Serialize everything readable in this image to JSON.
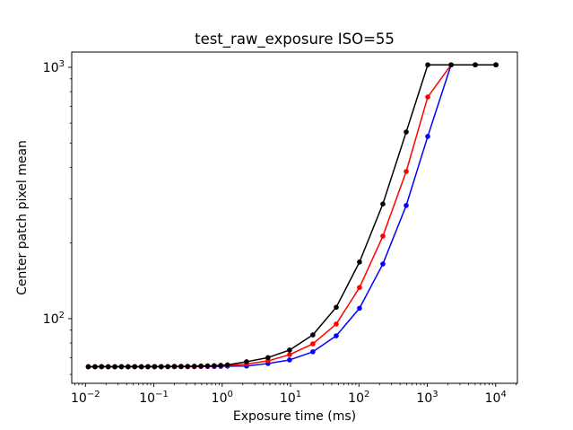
{
  "figure": {
    "background": "#ffffff",
    "spine_color": "#000000"
  },
  "chart_data": {
    "type": "line",
    "title": "test_raw_exposure ISO=55",
    "xlabel": "Exposure time (ms)",
    "ylabel": "Center patch pixel mean",
    "x_scale": "log",
    "y_scale": "log",
    "xlim": [
      0.0063,
      20800
    ],
    "ylim": [
      55.3,
      1150
    ],
    "x_major_tick_exponents": [
      -2,
      -1,
      0,
      1,
      2,
      3,
      4
    ],
    "y_major_tick_exponents": [
      2,
      3
    ],
    "grid": false,
    "legend": "none",
    "marker": "circle",
    "x": [
      0.011,
      0.0138,
      0.0172,
      0.0215,
      0.0269,
      0.0336,
      0.042,
      0.0525,
      0.0656,
      0.082,
      0.1025,
      0.1281,
      0.1602,
      0.2002,
      0.2503,
      0.3128,
      0.391,
      0.4888,
      0.611,
      0.7637,
      0.9547,
      1.193,
      2.27,
      4.68,
      9.67,
      21.2,
      46.6,
      102,
      224,
      492,
      1016,
      2230,
      5030,
      10090
    ],
    "series": [
      {
        "name": "blue",
        "color": "#0000ff",
        "values": [
          64.3,
          64.3,
          64.3,
          64.3,
          64.3,
          64.3,
          64.3,
          64.3,
          64.3,
          64.3,
          64.3,
          64.3,
          64.4,
          64.4,
          64.4,
          64.4,
          64.4,
          64.5,
          64.5,
          64.5,
          64.6,
          64.7,
          64.8,
          66.3,
          68.5,
          73.8,
          85.5,
          110,
          165,
          282,
          531,
          1023,
          1023,
          1023
        ]
      },
      {
        "name": "red",
        "color": "#ff0000",
        "values": [
          64.4,
          64.4,
          64.4,
          64.4,
          64.4,
          64.4,
          64.4,
          64.4,
          64.4,
          64.4,
          64.4,
          64.4,
          64.4,
          64.5,
          64.5,
          64.5,
          64.6,
          64.6,
          64.7,
          64.8,
          64.9,
          65.1,
          66.0,
          67.9,
          71.9,
          79.4,
          95.2,
          133,
          213,
          385,
          762,
          1023,
          1023,
          1023
        ]
      },
      {
        "name": "black",
        "color": "#000000",
        "values": [
          64.4,
          64.4,
          64.5,
          64.4,
          64.4,
          64.5,
          64.4,
          64.5,
          64.4,
          64.5,
          64.5,
          64.5,
          64.5,
          64.6,
          64.6,
          64.6,
          64.7,
          64.8,
          64.9,
          65.0,
          65.2,
          65.5,
          67.4,
          70.0,
          75.0,
          86.2,
          111,
          168,
          286,
          553,
          1023,
          1023,
          1023,
          1023
        ]
      }
    ]
  }
}
